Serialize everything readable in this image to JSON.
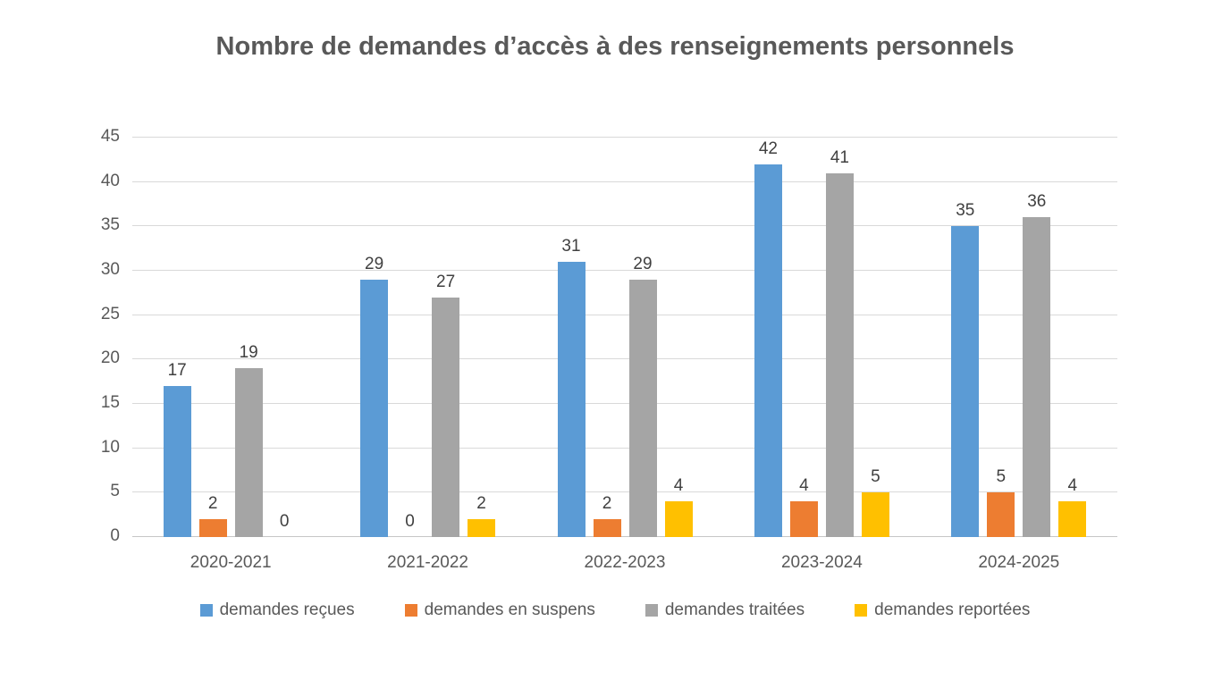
{
  "chart_data": {
    "type": "bar",
    "title": "Nombre de demandes d’accès à des renseignements personnels",
    "categories": [
      "2020-2021",
      "2021-2022",
      "2022-2023",
      "2023-2024",
      "2024-2025"
    ],
    "series": [
      {
        "name": "demandes reçues",
        "color": "#5B9BD5",
        "values": [
          17,
          29,
          31,
          42,
          35
        ]
      },
      {
        "name": "demandes en suspens",
        "color": "#ED7D31",
        "values": [
          2,
          0,
          2,
          4,
          5
        ]
      },
      {
        "name": "demandes traitées",
        "color": "#A5A5A5",
        "values": [
          19,
          27,
          29,
          41,
          36
        ]
      },
      {
        "name": "demandes reportées",
        "color": "#FFC000",
        "values": [
          0,
          2,
          4,
          5,
          4
        ]
      }
    ],
    "ylim": [
      0,
      45
    ],
    "ytick_step": 5,
    "yticks": [
      0,
      5,
      10,
      15,
      20,
      25,
      30,
      35,
      40,
      45
    ],
    "grid": true,
    "data_labels": true,
    "legend_position": "bottom",
    "colors": {
      "background": "#FFFFFF",
      "gridline": "#D9D9D9",
      "axis_line": "#C6C6C6",
      "axis_text": "#595959",
      "data_label_text": "#404040",
      "title_text": "#595959",
      "legend_text": "#595959"
    }
  }
}
